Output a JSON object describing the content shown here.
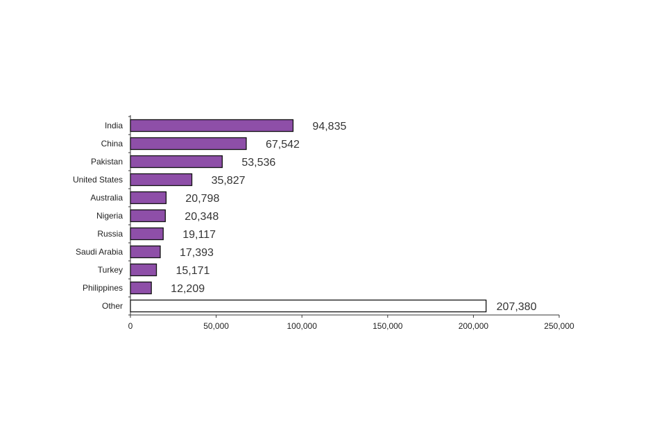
{
  "chart_data": {
    "type": "bar",
    "orientation": "horizontal",
    "categories": [
      "India",
      "China",
      "Pakistan",
      "United States",
      "Australia",
      "Nigeria",
      "Russia",
      "Saudi Arabia",
      "Turkey",
      "Philippines",
      "Other"
    ],
    "values": [
      94835,
      67542,
      53536,
      35827,
      20798,
      20348,
      19117,
      17393,
      15171,
      12209,
      207380
    ],
    "data_labels": [
      "94,835",
      "67,542",
      "53,536",
      "35,827",
      "20,798",
      "20,348",
      "19,117",
      "17,393",
      "15,171",
      "12,209",
      "207,380"
    ],
    "xlim": [
      0,
      250000
    ],
    "xticks": [
      0,
      50000,
      100000,
      150000,
      200000,
      250000
    ],
    "xtick_labels": [
      "0",
      "50,000",
      "100,000",
      "150,000",
      "200,000",
      "250,000"
    ],
    "title": "",
    "xlabel": "",
    "ylabel": "",
    "grid": false,
    "colors": {
      "bar": "#8e4fa8",
      "other_bar": "#ffffff",
      "outline": "#111111"
    }
  }
}
